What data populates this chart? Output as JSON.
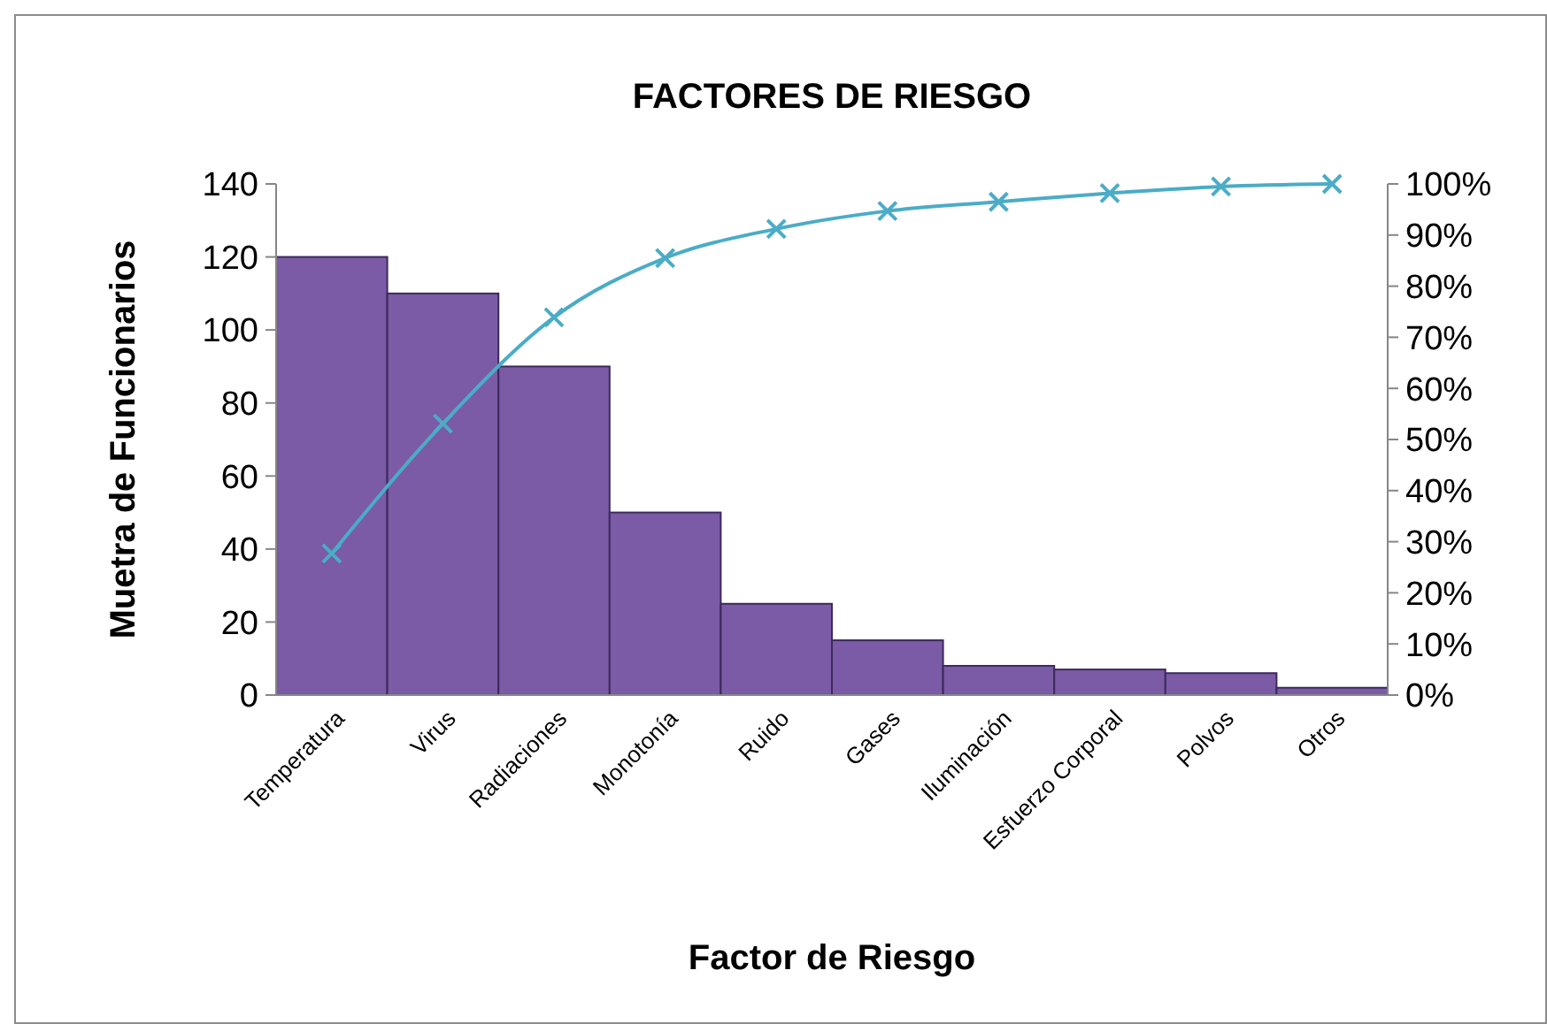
{
  "chart_data": {
    "type": "bar",
    "title": "FACTORES DE RIESGO",
    "xlabel": "Factor de Riesgo",
    "ylabel": "Muetra de Funcionarios",
    "categories": [
      "Temperatura",
      "Virus",
      "Radiaciones",
      "Monotonía",
      "Ruido",
      "Gases",
      "Iluminación",
      "Esfuerzo Corporal",
      "Polvos",
      "Otros"
    ],
    "series": [
      {
        "color": "#7b5aa6",
        "values": [
          120,
          110,
          90,
          50,
          25,
          15,
          8,
          7,
          6,
          2
        ]
      },
      {
        "type": "line",
        "axis": "y2",
        "color": "#4bacc6",
        "marker": "cross",
        "values": [
          27.7,
          53.1,
          73.9,
          85.5,
          91.2,
          94.7,
          96.5,
          98.2,
          99.5,
          100
        ]
      }
    ],
    "ylim": [
      0,
      140
    ],
    "yticks": [
      0,
      20,
      40,
      60,
      80,
      100,
      120,
      140
    ],
    "y2lim": [
      0,
      100
    ],
    "y2ticks": [
      {
        "value": 0,
        "label": "0%"
      },
      {
        "value": 10,
        "label": "10%"
      },
      {
        "value": 20,
        "label": "20%"
      },
      {
        "value": 30,
        "label": "30%"
      },
      {
        "value": 40,
        "label": "40%"
      },
      {
        "value": 50,
        "label": "50%"
      },
      {
        "value": 60,
        "label": "60%"
      },
      {
        "value": 70,
        "label": "70%"
      },
      {
        "value": 80,
        "label": "80%"
      },
      {
        "value": 90,
        "label": "90%"
      },
      {
        "value": 100,
        "label": "100%"
      }
    ],
    "grid": false
  }
}
